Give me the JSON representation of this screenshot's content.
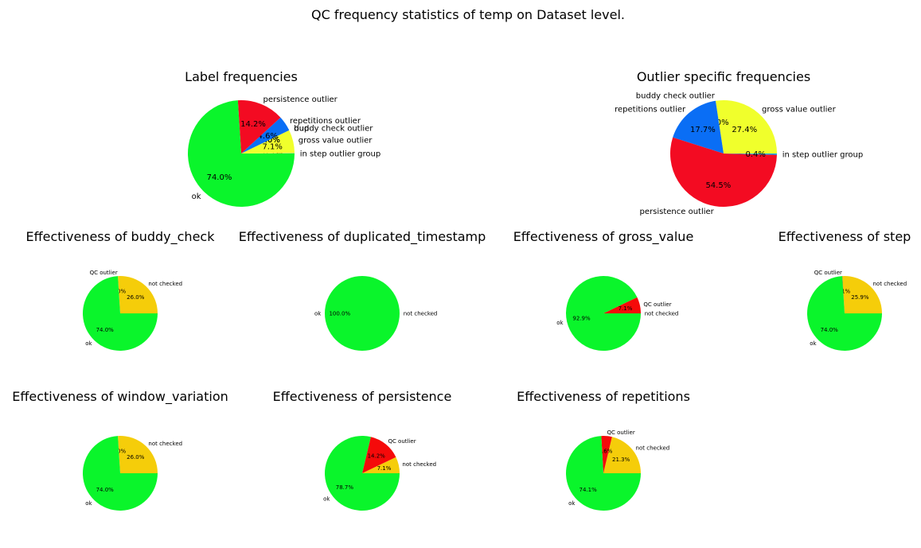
{
  "figure": {
    "suptitle": "QC frequency statistics of temp on Dataset level."
  },
  "colors": {
    "ok": "#0af52b",
    "not_checked": "#f5cd0a",
    "qc_outlier": "#f50a0a",
    "gross_value_outlier": "#f0ff2c",
    "persistence_outlier": "#f30b22",
    "repetitions_outlier": "#0a6ef5",
    "in_step_outlier_group": "#0aaaf5",
    "buddy_check_outlier": "#0a6ef5",
    "dup": "#0a6ef5"
  },
  "chart_data": [
    {
      "type": "pie",
      "title": "Label frequencies",
      "slices": [
        {
          "label": "in step outlier group",
          "pct_text": "0.1%",
          "value": 0.1,
          "color": "#0aaaf5"
        },
        {
          "label": "gross value outlier",
          "pct_text": "7.1%",
          "value": 7.1,
          "color": "#f0ff2c"
        },
        {
          "label": "dup",
          "pct_text": "0.0%",
          "value": 0.0,
          "color": "#0a6ef5"
        },
        {
          "label": "buddy check outlier",
          "pct_text": "0.0%",
          "value": 0.0,
          "color": "#0a6ef5"
        },
        {
          "label": "repetitions outlier",
          "pct_text": "4.6%",
          "value": 4.6,
          "color": "#0a6ef5"
        },
        {
          "label": "persistence outlier",
          "pct_text": "14.2%",
          "value": 14.2,
          "color": "#f30b22"
        },
        {
          "label": "ok",
          "pct_text": "74.0%",
          "value": 74.0,
          "color": "#0af52b"
        }
      ]
    },
    {
      "type": "pie",
      "title": "Outlier specific frequencies",
      "slices": [
        {
          "label": "gross value outlier",
          "pct_text": "27.4%",
          "value": 27.4,
          "color": "#f0ff2c"
        },
        {
          "label": "buddy check outlier",
          "pct_text": "0.0%",
          "value": 0.0,
          "color": "#0a6ef5"
        },
        {
          "label": "repetitions outlier",
          "pct_text": "17.7%",
          "value": 17.7,
          "color": "#0a6ef5"
        },
        {
          "label": "persistence outlier",
          "pct_text": "54.5%",
          "value": 54.5,
          "color": "#f30b22"
        },
        {
          "label": "in step outlier group",
          "pct_text": "0.4%",
          "value": 0.4,
          "color": "#0aaaf5"
        }
      ]
    },
    {
      "type": "pie",
      "title": "Effectiveness of buddy_check",
      "slices": [
        {
          "label": "not checked",
          "pct_text": "26.0%",
          "value": 26.0,
          "color": "#f5cd0a"
        },
        {
          "label": "QC outlier",
          "pct_text": "0.0%",
          "value": 0.0,
          "color": "#f50a0a"
        },
        {
          "label": "ok",
          "pct_text": "74.0%",
          "value": 74.0,
          "color": "#0af52b"
        }
      ]
    },
    {
      "type": "pie",
      "title": "Effectiveness of duplicated_timestamp",
      "slices": [
        {
          "label": "not checked",
          "pct_text": "0.0%",
          "value": 0.0,
          "color": "#f5cd0a"
        },
        {
          "label": "",
          "pct_text": "0.0%",
          "value": 0.0,
          "color": "#f50a0a"
        },
        {
          "label": "ok",
          "pct_text": "100.0%",
          "value": 100.0,
          "color": "#0af52b"
        }
      ]
    },
    {
      "type": "pie",
      "title": "Effectiveness of gross_value",
      "slices": [
        {
          "label": "not checked",
          "pct_text": "0.0%",
          "value": 0.0,
          "color": "#f5cd0a"
        },
        {
          "label": "QC outlier",
          "pct_text": "7.1%",
          "value": 7.1,
          "color": "#f50a0a"
        },
        {
          "label": "ok",
          "pct_text": "92.9%",
          "value": 92.9,
          "color": "#0af52b"
        }
      ]
    },
    {
      "type": "pie",
      "title": "Effectiveness of step",
      "slices": [
        {
          "label": "not checked",
          "pct_text": "25.9%",
          "value": 25.9,
          "color": "#f5cd0a"
        },
        {
          "label": "QC outlier",
          "pct_text": "0.1%",
          "value": 0.1,
          "color": "#f50a0a"
        },
        {
          "label": "ok",
          "pct_text": "74.0%",
          "value": 74.0,
          "color": "#0af52b"
        }
      ]
    },
    {
      "type": "pie",
      "title": "Effectiveness of window_variation",
      "slices": [
        {
          "label": "not checked",
          "pct_text": "26.0%",
          "value": 26.0,
          "color": "#f5cd0a"
        },
        {
          "label": "",
          "pct_text": "0.0%",
          "value": 0.0,
          "color": "#f50a0a"
        },
        {
          "label": "ok",
          "pct_text": "74.0%",
          "value": 74.0,
          "color": "#0af52b"
        }
      ]
    },
    {
      "type": "pie",
      "title": "Effectiveness of persistence",
      "slices": [
        {
          "label": "not checked",
          "pct_text": "7.1%",
          "value": 7.1,
          "color": "#f5cd0a"
        },
        {
          "label": "QC outlier",
          "pct_text": "14.2%",
          "value": 14.2,
          "color": "#f50a0a"
        },
        {
          "label": "ok",
          "pct_text": "78.7%",
          "value": 78.7,
          "color": "#0af52b"
        }
      ]
    },
    {
      "type": "pie",
      "title": "Effectiveness of repetitions",
      "slices": [
        {
          "label": "not checked",
          "pct_text": "21.3%",
          "value": 21.3,
          "color": "#f5cd0a"
        },
        {
          "label": "QC outlier",
          "pct_text": "4.6%",
          "value": 4.6,
          "color": "#f50a0a"
        },
        {
          "label": "ok",
          "pct_text": "74.1%",
          "value": 74.1,
          "color": "#0af52b"
        }
      ]
    }
  ]
}
